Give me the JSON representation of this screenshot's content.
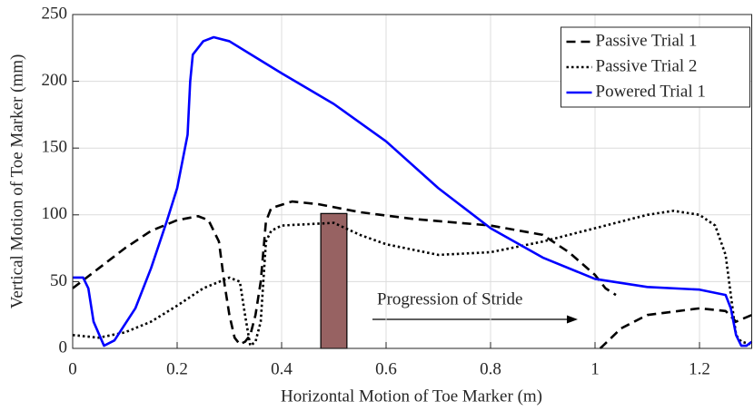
{
  "chart_data": {
    "type": "line",
    "xlabel": "Horizontal Motion of Toe Marker (m)",
    "ylabel": "Vertical Motion of Toe Marker (mm)",
    "xlim": [
      0,
      1.3
    ],
    "ylim": [
      0,
      250
    ],
    "xticks": [
      0,
      0.2,
      0.4,
      0.6,
      0.8,
      1,
      1.2
    ],
    "yticks": [
      0,
      50,
      100,
      150,
      200,
      250
    ],
    "grid": true,
    "legend": "upper right",
    "annotation": "Progression of Stride",
    "obstacle": {
      "x": [
        0.475,
        0.525
      ],
      "height": 101,
      "color": "#976262"
    },
    "series": [
      {
        "name": "Passive Trial 1",
        "color": "#000000",
        "style": "dashed",
        "x": [
          0,
          0.05,
          0.1,
          0.15,
          0.2,
          0.24,
          0.26,
          0.28,
          0.29,
          0.3,
          0.31,
          0.32,
          0.33,
          0.34,
          0.35,
          0.36,
          0.37,
          0.38,
          0.42,
          0.47,
          0.55,
          0.65,
          0.8,
          0.9,
          0.95,
          1.0,
          1.02,
          1.04,
          1.04,
          1.01,
          1.05,
          1.1,
          1.2,
          1.25,
          1.27,
          1.3
        ],
        "values": [
          45,
          60,
          75,
          88,
          96,
          99,
          96,
          80,
          50,
          25,
          8,
          3,
          5,
          10,
          25,
          50,
          95,
          105,
          110,
          108,
          102,
          97,
          92,
          85,
          72,
          55,
          45,
          40,
          null,
          0,
          15,
          25,
          30,
          28,
          20,
          25
        ]
      },
      {
        "name": "Passive Trial 2",
        "color": "#000000",
        "style": "dotted",
        "x": [
          0,
          0.05,
          0.1,
          0.15,
          0.2,
          0.25,
          0.3,
          0.32,
          0.33,
          0.34,
          0.35,
          0.36,
          0.365,
          0.37,
          0.38,
          0.4,
          0.5,
          0.55,
          0.6,
          0.7,
          0.8,
          0.9,
          1.0,
          1.1,
          1.15,
          1.2,
          1.23,
          1.25,
          1.26,
          1.27,
          1.28,
          1.3
        ],
        "values": [
          10,
          8,
          12,
          20,
          32,
          45,
          53,
          50,
          25,
          2,
          5,
          20,
          50,
          80,
          88,
          92,
          94,
          85,
          78,
          70,
          72,
          80,
          90,
          100,
          103,
          100,
          92,
          70,
          40,
          10,
          5,
          3
        ]
      },
      {
        "name": "Powered Trial 1",
        "color": "#0000ff",
        "style": "solid",
        "x": [
          0,
          0.02,
          0.03,
          0.04,
          0.06,
          0.08,
          0.12,
          0.15,
          0.18,
          0.2,
          0.22,
          0.225,
          0.23,
          0.25,
          0.27,
          0.3,
          0.35,
          0.4,
          0.5,
          0.6,
          0.7,
          0.8,
          0.9,
          1.0,
          1.1,
          1.2,
          1.25,
          1.26,
          1.27,
          1.28,
          1.29,
          1.3
        ],
        "values": [
          53,
          53,
          45,
          20,
          2,
          6,
          30,
          60,
          95,
          120,
          160,
          200,
          220,
          230,
          233,
          230,
          218,
          206,
          183,
          155,
          120,
          90,
          68,
          52,
          46,
          44,
          40,
          30,
          10,
          2,
          2,
          5
        ]
      }
    ]
  }
}
